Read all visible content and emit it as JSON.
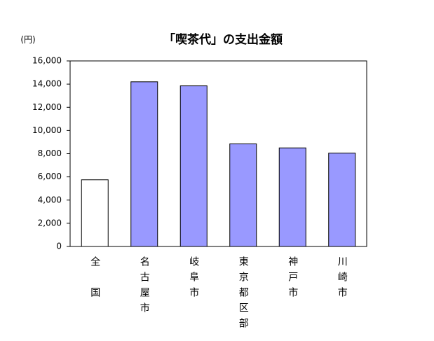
{
  "chart_data": {
    "type": "bar",
    "title": "「喫茶代」の支出金額",
    "y_unit": "(円)",
    "categories": [
      "全　国",
      "名古屋市",
      "岐阜市",
      "東京都区部",
      "神戸市",
      "川崎市"
    ],
    "values": [
      5750,
      14200,
      13850,
      8850,
      8500,
      8050
    ],
    "colors": [
      "#ffffff",
      "#9999ff",
      "#9999ff",
      "#9999ff",
      "#9999ff",
      "#9999ff"
    ],
    "ylim": [
      0,
      16000
    ],
    "yticks": [
      0,
      {
        "value": 2000,
        "label": "2,000"
      },
      {
        "value": 4000,
        "label": "4,000"
      },
      {
        "value": 6000,
        "label": "6,000"
      },
      {
        "value": 8000,
        "label": "8,000"
      },
      {
        "value": 10000,
        "label": "10,000"
      },
      {
        "value": 12000,
        "label": "12,000"
      },
      {
        "value": 14000,
        "label": "14,000"
      },
      {
        "value": 16000,
        "label": "16,000"
      }
    ],
    "grid": false
  }
}
